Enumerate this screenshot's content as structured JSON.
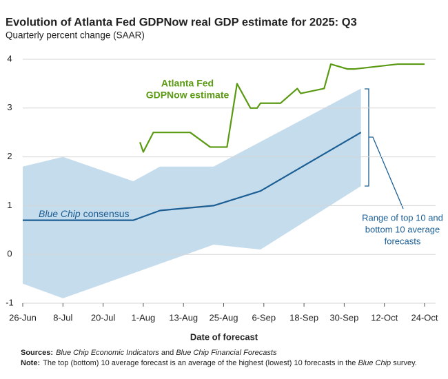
{
  "chart_data": {
    "type": "line",
    "title": "Evolution of Atlanta Fed GDPNow real GDP estimate for 2025: Q3",
    "subtitle": "Quarterly percent change (SAAR)",
    "x_label": "Date of forecast",
    "xlim": [
      "26-Jun",
      "24-Oct"
    ],
    "xticks": [
      "26-Jun",
      "8-Jul",
      "20-Jul",
      "1-Aug",
      "13-Aug",
      "25-Aug",
      "6-Sep",
      "18-Sep",
      "30-Sep",
      "12-Oct",
      "24-Oct"
    ],
    "ylim": [
      -1,
      4
    ],
    "yticks": [
      -1,
      0,
      1,
      2,
      3,
      4
    ],
    "grid": true,
    "band": {
      "color": "#c5dcec",
      "upper": {
        "x": [
          "26-Jun",
          "8-Jul",
          "29-Jul",
          "6-Aug",
          "22-Aug",
          "5-Oct"
        ],
        "values": [
          1.8,
          2.0,
          1.5,
          1.8,
          1.8,
          3.4
        ]
      },
      "lower": {
        "x": [
          "26-Jun",
          "8-Jul",
          "22-Aug",
          "5-Sep",
          "5-Oct"
        ],
        "values": [
          -0.6,
          -0.9,
          0.2,
          0.1,
          1.4
        ]
      },
      "label_lines": [
        "Range of top 10 and",
        "bottom 10 average",
        "forecasts"
      ]
    },
    "series": [
      {
        "label_lines": [
          "Atlanta Fed",
          "GDPNow estimate"
        ],
        "color": "#5a9a12",
        "x": [
          "31-Jul",
          "1-Aug",
          "4-Aug",
          "15-Aug",
          "21-Aug",
          "26-Aug",
          "29-Aug",
          "2-Sep",
          "4-Sep",
          "5-Sep",
          "11-Sep",
          "16-Sep",
          "17-Sep",
          "24-Sep",
          "26-Sep",
          "1-Oct",
          "3-Oct",
          "16-Oct",
          "24-Oct"
        ],
        "values": [
          2.3,
          2.1,
          2.5,
          2.5,
          2.2,
          2.2,
          3.5,
          3.0,
          3.0,
          3.1,
          3.1,
          3.4,
          3.3,
          3.4,
          3.9,
          3.8,
          3.8,
          3.9,
          3.9
        ]
      },
      {
        "label_parts": [
          {
            "text": "Blue Chip",
            "italic": true
          },
          {
            "text": " consensus"
          }
        ],
        "color": "#1b5e94",
        "x": [
          "26-Jun",
          "29-Jul",
          "6-Aug",
          "22-Aug",
          "5-Sep",
          "5-Oct"
        ],
        "values": [
          0.7,
          0.7,
          0.9,
          1.0,
          1.3,
          2.5
        ]
      }
    ],
    "notes": [
      {
        "label": "Sources:",
        "parts": [
          {
            "text": "Blue Chip Economic Indicators",
            "italic": true
          },
          {
            "text": " and "
          },
          {
            "text": "Blue Chip Financial Forecasts",
            "italic": true
          }
        ]
      },
      {
        "label": "Note:",
        "parts": [
          {
            "text": "The top (bottom) 10 average forecast is an average of the highest (lowest) 10 forecasts in the "
          },
          {
            "text": "Blue Chip",
            "italic": true
          },
          {
            "text": " survey."
          }
        ]
      }
    ]
  }
}
